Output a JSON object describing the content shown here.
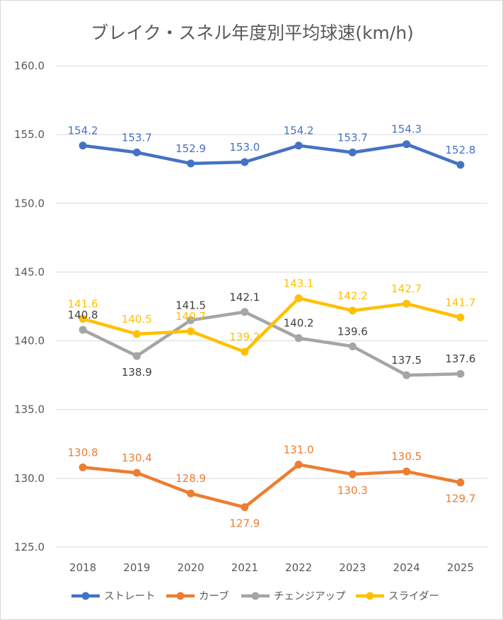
{
  "chart_data": {
    "type": "line",
    "title": "ブレイク・スネル年度別平均球速(km/h)",
    "categories": [
      "2018",
      "2019",
      "2020",
      "2021",
      "2022",
      "2023",
      "2024",
      "2025"
    ],
    "ylim": [
      125.0,
      160.0
    ],
    "yticks": [
      "125.0",
      "130.0",
      "135.0",
      "140.0",
      "145.0",
      "150.0",
      "155.0",
      "160.0"
    ],
    "grid": true,
    "legend_position": "bottom",
    "series": [
      {
        "name": "ストレート",
        "color": "#4472c4",
        "values": [
          154.2,
          153.7,
          152.9,
          153.0,
          154.2,
          153.7,
          154.3,
          152.8
        ],
        "labels": [
          "154.2",
          "153.7",
          "152.9",
          "153.0",
          "154.2",
          "153.7",
          "154.3",
          "152.8"
        ]
      },
      {
        "name": "カーブ",
        "color": "#ed7d31",
        "values": [
          130.8,
          130.4,
          128.9,
          127.9,
          131.0,
          130.3,
          130.5,
          129.7
        ],
        "labels": [
          "130.8",
          "130.4",
          "128.9",
          "127.9",
          "131.0",
          "130.3",
          "130.5",
          "129.7"
        ]
      },
      {
        "name": "チェンジアップ",
        "color": "#a5a5a5",
        "values": [
          140.8,
          138.9,
          141.5,
          142.1,
          140.2,
          139.6,
          137.5,
          137.6
        ],
        "labels": [
          "140.8",
          "138.9",
          "141.5",
          "142.1",
          "140.2",
          "139.6",
          "137.5",
          "137.6"
        ]
      },
      {
        "name": "スライダー",
        "color": "#ffc000",
        "values": [
          141.6,
          140.5,
          140.7,
          139.2,
          143.1,
          142.2,
          142.7,
          141.7
        ],
        "labels": [
          "141.6",
          "140.5",
          "140.7",
          "139.2",
          "143.1",
          "142.2",
          "142.7",
          "141.7"
        ]
      }
    ]
  },
  "styles": {
    "gridline_color": "#d9d9d9",
    "changeup_label_color": "#404040"
  }
}
